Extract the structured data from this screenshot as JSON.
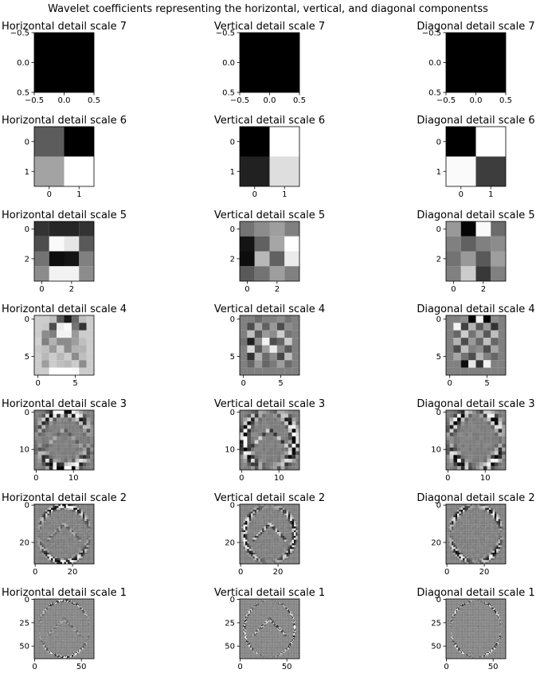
{
  "title": "Wavelet coefficients representing the horizontal, vertical, and diagonal componentss",
  "chart_data": [
    {
      "type": "heatmap",
      "title": "Horizontal detail scale 7",
      "size": 1,
      "xticks": [
        "−0.5",
        "0.0",
        "0.5"
      ],
      "yticks": [
        "−0.5",
        "0.0",
        "0.5"
      ],
      "values": [
        [
          0
        ]
      ]
    },
    {
      "type": "heatmap",
      "title": "Vertical detail scale 7",
      "size": 1,
      "xticks": [
        "−0.5",
        "0.0",
        "0.5"
      ],
      "yticks": [
        "−0.5",
        "0.0",
        "0.5"
      ],
      "values": [
        [
          0
        ]
      ]
    },
    {
      "type": "heatmap",
      "title": "Diagonal detail scale 7",
      "size": 1,
      "xticks": [
        "−0.5",
        "0.0",
        "0.5"
      ],
      "yticks": [
        "−0.5",
        "0.0",
        "0.5"
      ],
      "values": [
        [
          0
        ]
      ]
    },
    {
      "type": "heatmap",
      "title": "Horizontal detail scale 6",
      "size": 2,
      "xticks": [
        "0",
        "1"
      ],
      "yticks": [
        "0",
        "1"
      ],
      "values": [
        [
          0.36,
          0.0
        ],
        [
          0.64,
          1.0
        ]
      ]
    },
    {
      "type": "heatmap",
      "title": "Vertical detail scale 6",
      "size": 2,
      "xticks": [
        "0",
        "1"
      ],
      "yticks": [
        "0",
        "1"
      ],
      "values": [
        [
          0.0,
          1.0
        ],
        [
          0.13,
          0.87
        ]
      ]
    },
    {
      "type": "heatmap",
      "title": "Diagonal detail scale 6",
      "size": 2,
      "xticks": [
        "0",
        "1"
      ],
      "yticks": [
        "0",
        "1"
      ],
      "values": [
        [
          0.0,
          1.0
        ],
        [
          0.98,
          0.24
        ]
      ]
    },
    {
      "type": "heatmap",
      "title": "Horizontal detail scale 5",
      "size": 4,
      "xticks": [
        "0",
        "2"
      ],
      "yticks": [
        "0",
        "2"
      ],
      "values": [
        [
          0.2,
          0.15,
          0.15,
          0.2
        ],
        [
          0.3,
          0.98,
          0.9,
          0.35
        ],
        [
          0.45,
          0.05,
          0.08,
          0.5
        ],
        [
          0.55,
          0.95,
          0.95,
          0.55
        ]
      ]
    },
    {
      "type": "heatmap",
      "title": "Vertical detail scale 5",
      "size": 4,
      "xticks": [
        "0",
        "2"
      ],
      "yticks": [
        "0",
        "2"
      ],
      "values": [
        [
          0.45,
          0.55,
          0.62,
          0.5
        ],
        [
          0.08,
          0.38,
          0.65,
          1.0
        ],
        [
          0.05,
          0.72,
          0.38,
          0.92
        ],
        [
          0.35,
          0.45,
          0.62,
          0.5
        ]
      ]
    },
    {
      "type": "heatmap",
      "title": "Diagonal detail scale 5",
      "size": 4,
      "xticks": [
        "0",
        "2"
      ],
      "yticks": [
        "0",
        "2"
      ],
      "values": [
        [
          0.6,
          0.02,
          0.98,
          0.42
        ],
        [
          0.5,
          0.38,
          0.5,
          0.55
        ],
        [
          0.45,
          0.6,
          0.35,
          0.62
        ],
        [
          0.5,
          0.8,
          0.22,
          0.5
        ]
      ]
    },
    {
      "type": "heatmap",
      "title": "Horizontal detail scale 4",
      "size": 8,
      "xticks": [
        "0",
        "5"
      ],
      "yticks": [
        "0",
        "5"
      ],
      "values": [
        [
          0.8,
          0.8,
          0.75,
          0.35,
          0.1,
          0.4,
          0.75,
          0.8
        ],
        [
          0.8,
          0.78,
          0.3,
          0.92,
          0.98,
          0.45,
          0.2,
          0.8
        ],
        [
          0.8,
          0.55,
          0.5,
          0.95,
          0.95,
          0.6,
          0.8,
          0.8
        ],
        [
          0.82,
          0.5,
          0.7,
          0.55,
          0.55,
          0.62,
          0.75,
          0.8
        ],
        [
          0.78,
          0.75,
          0.6,
          0.8,
          0.55,
          0.7,
          0.7,
          0.8
        ],
        [
          0.8,
          0.72,
          0.8,
          0.72,
          0.8,
          0.55,
          0.75,
          0.8
        ],
        [
          0.8,
          0.62,
          0.8,
          0.75,
          0.72,
          0.8,
          0.55,
          0.8
        ],
        [
          0.8,
          0.8,
          1.0,
          1.0,
          1.0,
          0.98,
          0.8,
          0.8
        ]
      ]
    },
    {
      "type": "heatmap",
      "title": "Vertical detail scale 4",
      "size": 8,
      "xticks": [
        "0",
        "5"
      ],
      "yticks": [
        "0",
        "5"
      ],
      "values": [
        [
          0.5,
          0.5,
          0.42,
          0.5,
          0.5,
          0.55,
          0.45,
          0.5
        ],
        [
          0.5,
          0.3,
          0.65,
          0.38,
          0.6,
          0.3,
          0.55,
          0.5
        ],
        [
          0.5,
          0.75,
          0.35,
          0.6,
          0.55,
          0.8,
          0.45,
          0.5
        ],
        [
          0.45,
          0.12,
          0.55,
          0.95,
          0.3,
          0.4,
          0.8,
          0.5
        ],
        [
          0.5,
          0.85,
          0.35,
          0.62,
          0.92,
          0.55,
          0.35,
          0.5
        ],
        [
          0.5,
          0.2,
          0.7,
          0.42,
          0.55,
          0.28,
          0.75,
          0.5
        ],
        [
          0.5,
          0.4,
          0.6,
          0.4,
          0.48,
          0.62,
          0.42,
          0.5
        ],
        [
          0.5,
          0.5,
          0.5,
          0.5,
          0.5,
          0.5,
          0.5,
          0.5
        ]
      ]
    },
    {
      "type": "heatmap",
      "title": "Diagonal detail scale 4",
      "size": 8,
      "xticks": [
        "0",
        "5"
      ],
      "yticks": [
        "0",
        "5"
      ],
      "values": [
        [
          0.5,
          0.5,
          0.55,
          0.02,
          0.95,
          0.02,
          0.55,
          0.5
        ],
        [
          0.5,
          0.95,
          0.25,
          0.7,
          0.35,
          0.6,
          0.2,
          0.5
        ],
        [
          0.5,
          0.4,
          0.8,
          0.45,
          0.65,
          0.35,
          0.75,
          0.5
        ],
        [
          0.5,
          0.7,
          0.3,
          0.6,
          0.4,
          0.75,
          0.4,
          0.5
        ],
        [
          0.5,
          0.3,
          0.75,
          0.5,
          0.55,
          0.3,
          0.65,
          0.5
        ],
        [
          0.5,
          0.65,
          0.45,
          0.3,
          0.7,
          0.5,
          0.4,
          0.5
        ],
        [
          0.5,
          0.5,
          0.05,
          0.9,
          0.2,
          0.95,
          0.5,
          0.5
        ],
        [
          0.5,
          0.5,
          0.5,
          0.5,
          0.5,
          0.5,
          0.5,
          0.5
        ]
      ]
    },
    {
      "type": "heatmap",
      "title": "Horizontal detail scale 3",
      "size": 16,
      "xticks": [
        "0",
        "10"
      ],
      "yticks": [
        "0",
        "10"
      ],
      "values": "wavelet-horizontal"
    },
    {
      "type": "heatmap",
      "title": "Vertical detail scale 3",
      "size": 16,
      "xticks": [
        "0",
        "10"
      ],
      "yticks": [
        "0",
        "10"
      ],
      "values": "wavelet-vertical"
    },
    {
      "type": "heatmap",
      "title": "Diagonal detail scale 3",
      "size": 16,
      "xticks": [
        "0",
        "10"
      ],
      "yticks": [
        "0",
        "10"
      ],
      "values": "wavelet-diagonal"
    },
    {
      "type": "heatmap",
      "title": "Horizontal detail scale 2",
      "size": 32,
      "xticks": [
        "0",
        "20"
      ],
      "yticks": [
        "0",
        "20"
      ],
      "values": "wavelet-horizontal"
    },
    {
      "type": "heatmap",
      "title": "Vertical detail scale 2",
      "size": 32,
      "xticks": [
        "0",
        "20"
      ],
      "yticks": [
        "0",
        "20"
      ],
      "values": "wavelet-vertical"
    },
    {
      "type": "heatmap",
      "title": "Diagonal detail scale 2",
      "size": 32,
      "xticks": [
        "0",
        "20"
      ],
      "yticks": [
        "0",
        "20"
      ],
      "values": "wavelet-diagonal"
    },
    {
      "type": "heatmap",
      "title": "Horizontal detail scale 1",
      "size": 64,
      "xticks": [
        "0",
        "50"
      ],
      "yticks": [
        "0",
        "25",
        "50"
      ],
      "values": "wavelet-horizontal"
    },
    {
      "type": "heatmap",
      "title": "Vertical detail scale 1",
      "size": 64,
      "xticks": [
        "0",
        "50"
      ],
      "yticks": [
        "0",
        "25",
        "50"
      ],
      "values": "wavelet-vertical"
    },
    {
      "type": "heatmap",
      "title": "Diagonal detail scale 1",
      "size": 64,
      "xticks": [
        "0",
        "50"
      ],
      "yticks": [
        "0",
        "25",
        "50"
      ],
      "values": "wavelet-diagonal"
    }
  ]
}
